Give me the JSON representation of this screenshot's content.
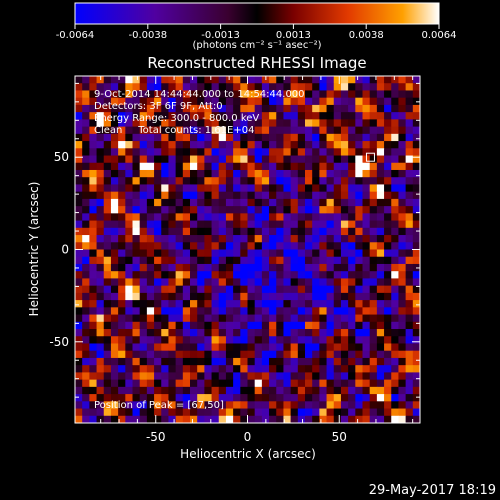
{
  "colorbar": {
    "ticks": [
      "-0.0064",
      "-0.0038",
      "-0.0013",
      "0.0013",
      "0.0038",
      "0.0064"
    ],
    "units": "(photons cm⁻² s⁻¹ asec⁻²)"
  },
  "chart_data": {
    "type": "heatmap",
    "title": "Reconstructed RHESSI Image",
    "xlabel": "Heliocentric X (arcsec)",
    "ylabel": "Heliocentric Y (arcsec)",
    "xlim": [
      -94,
      94
    ],
    "ylim": [
      -94,
      94
    ],
    "xticks": [
      "-50",
      "0",
      "50"
    ],
    "yticks": [
      "50",
      "0",
      "-50"
    ],
    "zlim": [
      -0.0064,
      0.0064
    ],
    "colormap": [
      "#0000ff",
      "#5000a0",
      "#3a0030",
      "#000000",
      "#7a0000",
      "#e23a00",
      "#ffa000",
      "#ffffff"
    ],
    "annotations": [
      "9-Oct-2014 14:44:44.000 to 14:54:44.000",
      "Detectors: 3F 6F 9F, Att:0",
      "Energy Range: 300.0 - 800.0 keV",
      "Clean     Total counts: 1.61E+04"
    ],
    "peak_label": "Position of Peak = [67,50]",
    "peak": [
      67,
      50
    ]
  },
  "footer": {
    "date": "29-May-2017 18:19"
  }
}
